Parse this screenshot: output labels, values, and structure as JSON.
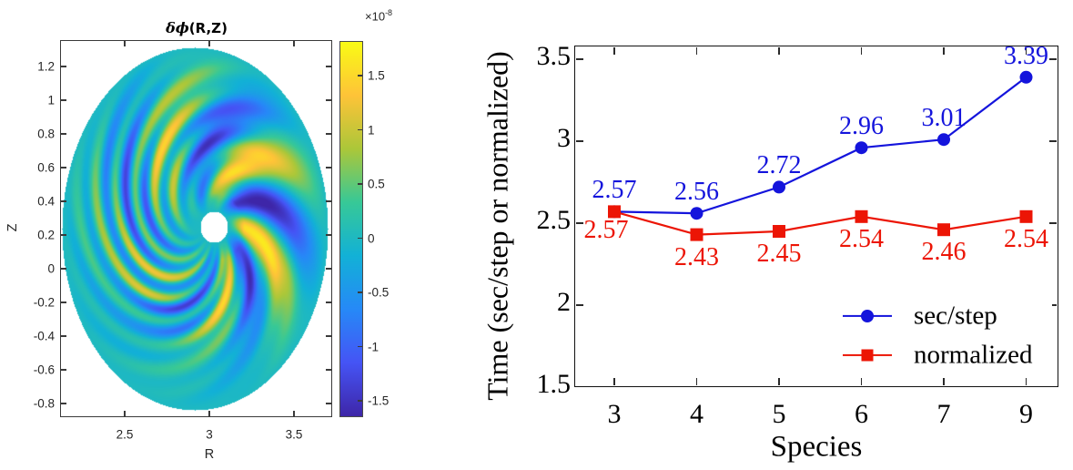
{
  "left_plot": {
    "title_math": "δϕ",
    "title_rest": "(R,Z)",
    "xlabel": "R",
    "ylabel": "Z",
    "x_ticks": [
      2.5,
      3,
      3.5
    ],
    "y_ticks": [
      1.2,
      1,
      0.8,
      0.6,
      0.4,
      0.2,
      0,
      -0.2,
      -0.4,
      -0.6,
      -0.8
    ],
    "colorbar": {
      "exponent_mult": "×10",
      "exponent_power": "-8",
      "ticks": [
        1.5,
        1,
        0.5,
        0,
        -0.5,
        -1,
        -1.5
      ],
      "colormap": "parula",
      "stops": [
        "#3e26a8",
        "#4554f5",
        "#2689f7",
        "#12b1d6",
        "#37c897",
        "#abc739",
        "#fec338",
        "#f9fb15"
      ]
    }
  },
  "right_plot": {
    "xlabel": "Species",
    "ylabel": "Time (sec/step or normalized)",
    "x_tick_labels": [
      "3",
      "4",
      "5",
      "6",
      "7",
      "9"
    ],
    "y_tick_values": [
      3.5,
      3,
      2.5,
      2,
      1.5
    ],
    "y_tick_labels": [
      "3.5",
      "3",
      "2.5",
      "2",
      "1.5"
    ],
    "grid_values": [
      2,
      2.5,
      3,
      3.5
    ],
    "series": [
      {
        "name": "sec/step",
        "color": "#1414dc",
        "marker": "circle",
        "values": [
          2.57,
          2.56,
          2.72,
          2.96,
          3.01,
          3.39
        ],
        "labels": [
          "2.57",
          "2.56",
          "2.72",
          "2.96",
          "3.01",
          "3.39"
        ],
        "label_side": "above"
      },
      {
        "name": "normalized",
        "color": "#ec1505",
        "marker": "square",
        "values": [
          2.57,
          2.43,
          2.45,
          2.54,
          2.46,
          2.54
        ],
        "labels": [
          "2.57",
          "2.43",
          "2.45",
          "2.54",
          "2.46",
          "2.54"
        ],
        "label_side": "below"
      }
    ],
    "legend": {
      "entries": [
        "sec/step",
        "normalized"
      ]
    }
  },
  "chart_data": [
    {
      "type": "heatmap",
      "title": "δϕ(R,Z)",
      "xlabel": "R",
      "ylabel": "Z",
      "x_ticks": [
        2.5,
        3,
        3.5
      ],
      "y_ticks": [
        1.2,
        1,
        0.8,
        0.6,
        0.4,
        0.2,
        0,
        -0.2,
        -0.4,
        -0.6,
        -0.8
      ],
      "xlim": [
        2.12,
        3.73
      ],
      "ylim": [
        -0.88,
        1.36
      ],
      "value_scale": "1e-8",
      "colorbar_ticks": [
        1.5,
        1,
        0.5,
        0,
        -0.5,
        -1,
        -1.5
      ],
      "colorbar_range": [
        -1.65,
        1.82
      ],
      "colormap": "parula",
      "description": "Potential perturbation δφ on a poloidal cross-section: elliptical plasma boundary centered near R=2.91, Z=0.24 (semi-axes ~0.79 in R, ~1.08 in Z) filled with teal (δφ≈0); small white hole at magnetic axis R≈3.03, Z≈0.25; spiral pattern of positive (yellow) and negative (dark blue) blobs peaking at mid-radius, coarse large-amplitude blobs on the outboard (right) side, fine radial striations on the inboard (left) side, fading near top and bottom edges."
    },
    {
      "type": "line",
      "x": [
        3,
        4,
        5,
        6,
        7,
        9
      ],
      "x_tick_labels": [
        "3",
        "4",
        "5",
        "6",
        "7",
        "9"
      ],
      "xlabel": "Species",
      "ylabel": "Time (sec/step or normalized)",
      "ylim": [
        1.5,
        3.58
      ],
      "y_ticks": [
        1.5,
        2,
        2.5,
        3,
        3.5
      ],
      "grid": true,
      "legend_position": "lower right",
      "series": [
        {
          "name": "sec/step",
          "color": "#1414dc",
          "marker": "circle",
          "values": [
            2.57,
            2.56,
            2.72,
            2.96,
            3.01,
            3.39
          ]
        },
        {
          "name": "normalized",
          "color": "#ec1505",
          "marker": "square",
          "values": [
            2.57,
            2.43,
            2.45,
            2.54,
            2.46,
            2.54
          ]
        }
      ]
    }
  ]
}
